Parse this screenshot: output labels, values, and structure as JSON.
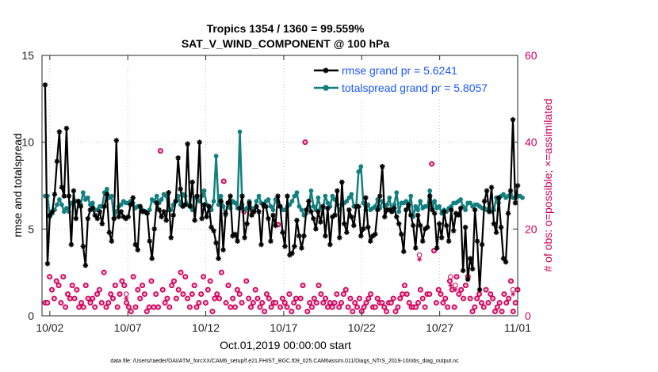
{
  "chart_data": {
    "type": "line",
    "title_line1": "Tropics 1354 / 1360 = 99.559%",
    "title_line2": "SAT_V_WIND_COMPONENT @ 100 hPa",
    "xlabel": "Oct.01,2019 00:00:00 start",
    "ylabel_left": "rmse and totalspread",
    "ylabel_right": "# of obs: o=possible; ×=assimilated",
    "x_range_days": [
      0.5,
      31.0
    ],
    "ylim_left": [
      0,
      15
    ],
    "ylim_right": [
      0,
      60
    ],
    "xticks": [
      {
        "day": 1,
        "label": "10/02"
      },
      {
        "day": 6,
        "label": "10/07"
      },
      {
        "day": 11,
        "label": "10/12"
      },
      {
        "day": 16,
        "label": "10/17"
      },
      {
        "day": 21,
        "label": "10/22"
      },
      {
        "day": 26,
        "label": "10/27"
      },
      {
        "day": 31,
        "label": "11/01"
      }
    ],
    "yticks_left": [
      "0",
      "5",
      "10",
      "15"
    ],
    "yticks_right": [
      "0",
      "20",
      "40",
      "60"
    ],
    "colors": {
      "rmse": "#000000",
      "spread": "#137f7f",
      "obs": "#d1005a",
      "legend_text": "#1a57ff"
    },
    "series": [
      {
        "name": "rmse grand pr = 5.6241",
        "values": [
          13.3,
          3.0,
          5.8,
          6.0,
          7.0,
          8.9,
          10.6,
          7.4,
          6.9,
          10.8,
          6.9,
          4.1,
          7.2,
          5.6,
          6.6,
          6.3,
          4.0,
          2.9,
          5.6,
          6.1,
          6.2,
          5.8,
          5.6,
          6.0,
          5.3,
          6.3,
          7.0,
          4.8,
          4.3,
          5.6,
          10.1,
          5.7,
          6.0,
          5.7,
          5.6,
          5.7,
          6.4,
          6.8,
          4.1,
          3.8,
          6.3,
          6.0,
          6.0,
          5.9,
          4.3,
          3.3,
          5.0,
          6.5,
          6.1,
          5.7,
          6.0,
          5.5,
          7.1,
          4.5,
          5.8,
          6.6,
          9.1,
          7.3,
          6.3,
          6.4,
          9.9,
          6.3,
          7.7,
          5.5,
          6.9,
          10.0,
          5.6,
          6.4,
          5.7,
          6.3,
          5.1,
          4.9,
          4.2,
          3.3,
          6.6,
          3.8,
          5.9,
          6.5,
          6.9,
          4.6,
          4.7,
          4.3,
          6.2,
          6.9,
          4.5,
          5.3,
          6.5,
          5.8,
          6.0,
          6.3,
          6.0,
          4.1,
          6.4,
          6.3,
          5.6,
          4.3,
          5.8,
          5.2,
          6.9,
          6.3,
          4.8,
          4.0,
          6.9,
          3.5,
          3.6,
          4.0,
          5.5,
          4.6,
          3.9,
          4.6,
          6.1,
          6.6,
          6.0,
          5.6,
          5.0,
          6.0,
          5.4,
          6.3,
          4.6,
          6.2,
          4.1,
          5.7,
          5.8,
          7.2,
          4.5,
          7.7,
          5.3,
          4.8,
          6.1,
          5.7,
          5.2,
          6.3,
          6.3,
          4.6,
          5.0,
          6.8,
          5.1,
          4.3,
          4.6,
          4.7,
          6.1,
          6.9,
          8.6,
          5.7,
          6.1,
          6.1,
          6.0,
          6.2,
          5.7,
          5.3,
          4.7,
          3.7,
          6.1,
          6.4,
          5.8,
          5.2,
          3.9,
          5.8,
          5.2,
          4.3,
          5.0,
          5.1,
          6.9,
          6.1,
          5.9,
          3.9,
          5.3,
          4.5,
          6.0,
          5.2,
          4.3,
          6.1,
          4.9,
          5.9,
          5.8,
          6.2,
          2.6,
          5.1,
          2.1,
          3.3,
          2.7,
          6.1,
          4.3,
          1.5,
          4.1,
          6.6,
          7.2,
          6.0,
          7.4,
          5.3,
          4.8,
          6.8,
          5.1,
          3.3,
          3.1,
          5.9,
          7.2,
          11.3,
          6.5,
          7.5
        ]
      },
      {
        "name": "totalspread grand pr = 5.8057",
        "values": [
          6.9,
          6.9,
          5.7,
          5.9,
          6.1,
          6.4,
          6.7,
          6.4,
          6.0,
          6.2,
          6.0,
          6.5,
          6.5,
          6.6,
          6.6,
          6.4,
          7.1,
          6.7,
          6.8,
          6.4,
          6.5,
          6.1,
          6.1,
          6.3,
          6.3,
          7.1,
          7.3,
          6.8,
          6.9,
          5.6,
          6.0,
          6.3,
          6.4,
          6.6,
          6.5,
          6.5,
          6.6,
          6.5,
          6.2,
          6.3,
          6.3,
          6.1,
          6.0,
          5.9,
          6.1,
          6.7,
          6.6,
          6.9,
          6.5,
          6.7,
          7.0,
          6.9,
          6.1,
          6.1,
          6.4,
          6.6,
          6.9,
          6.4,
          7.0,
          6.9,
          6.4,
          6.4,
          6.1,
          6.8,
          6.8,
          6.6,
          6.9,
          7.2,
          6.4,
          6.3,
          6.1,
          6.6,
          6.6,
          6.6,
          6.9,
          6.3,
          5.8,
          6.5,
          6.2,
          6.6,
          6.5,
          6.2,
          6.2,
          6.2,
          6.1,
          6.2,
          6.6,
          6.2,
          6.1,
          6.6,
          6.9,
          6.5,
          6.3,
          6.6,
          6.7,
          6.3,
          6.1,
          6.7,
          6.6,
          6.3,
          6.1,
          6.1,
          6.3,
          6.4,
          6.6,
          6.9,
          7.1,
          6.3,
          6.1,
          5.8,
          5.9,
          6.3,
          7.2,
          6.3,
          6.1,
          6.8,
          6.2,
          6.2,
          6.9,
          6.5,
          6.3,
          6.9,
          6.7,
          6.4,
          6.1,
          6.4,
          6.5,
          6.6,
          6.8,
          6.6,
          6.3,
          6.3,
          6.2,
          6.1,
          6.4,
          6.1,
          6.4,
          6.1,
          6.2,
          6.3,
          6.7,
          6.2,
          6.6,
          6.3,
          6.4,
          6.8,
          6.0,
          6.4,
          6.0,
          6.0,
          6.3,
          6.5,
          6.6,
          6.3,
          6.1,
          5.7,
          6.3,
          6.1,
          6.6,
          6.2,
          6.3,
          6.3,
          6.7,
          6.0,
          6.6,
          6.2,
          6.3,
          5.9,
          6.1,
          6.0,
          6.2,
          6.3,
          6.5,
          6.5,
          6.6,
          6.7,
          6.3,
          6.1,
          6.5,
          6.5,
          6.3,
          6.4,
          6.4,
          6.3,
          6.2,
          6.2,
          6.1,
          6.2,
          6.0,
          6.1,
          6.8,
          6.5,
          6.9,
          7.0,
          6.8,
          6.9,
          7.0,
          6.8,
          6.8,
          6.9,
          6.9,
          6.8
        ]
      }
    ],
    "spread_overrides": [
      {
        "day": 11.7,
        "value": 9.2
      },
      {
        "day": 11.83,
        "value": 6.4
      },
      {
        "day": 13.0,
        "value": 6.2
      },
      {
        "day": 13.17,
        "value": 10.6
      },
      {
        "day": 13.33,
        "value": 6.4
      },
      {
        "day": 20.33,
        "value": 7.0
      },
      {
        "day": 20.83,
        "value": 8.3
      },
      {
        "day": 21.0,
        "value": 8.6
      },
      {
        "day": 21.17,
        "value": 6.5
      },
      {
        "day": 22.83,
        "value": 6.8
      },
      {
        "day": 23.17,
        "value": 7.1
      },
      {
        "day": 23.5,
        "value": 6.5
      },
      {
        "day": 24.17,
        "value": 6.9
      },
      {
        "day": 25.33,
        "value": 7.2
      },
      {
        "day": 25.5,
        "value": 6.3
      }
    ],
    "obs_possible": [
      3,
      3,
      9,
      6,
      4,
      8,
      7,
      3,
      9,
      2,
      5,
      4,
      7,
      4,
      6,
      2,
      3,
      2,
      7,
      4,
      3,
      4,
      2,
      5,
      6,
      3,
      10,
      2,
      3,
      5,
      4,
      7,
      2,
      5,
      8,
      7,
      3,
      2,
      1,
      9,
      2,
      6,
      4,
      7,
      5,
      1,
      2,
      8,
      2,
      5,
      2,
      38,
      6,
      3,
      4,
      2,
      7,
      8,
      4,
      6,
      10,
      5,
      9,
      4,
      2,
      5,
      7,
      2,
      3,
      5,
      9,
      3,
      6,
      8,
      1,
      4,
      5,
      4,
      10,
      31,
      3,
      7,
      2,
      4,
      2,
      6,
      5,
      3,
      24,
      8,
      4,
      2,
      3,
      6,
      4,
      2,
      3,
      1,
      5,
      4,
      2,
      3,
      3,
      21,
      2,
      4,
      3,
      2,
      5,
      1,
      3,
      4,
      2,
      4,
      7,
      40,
      1,
      3,
      2,
      4,
      3,
      7,
      5,
      3,
      4,
      2,
      3,
      2,
      3,
      5,
      2,
      3,
      5,
      6,
      2,
      4,
      1,
      3,
      2,
      4,
      1,
      2,
      3,
      4,
      5,
      2,
      2,
      4,
      3,
      3,
      2,
      1,
      3,
      3,
      4,
      1,
      2,
      4,
      5,
      7,
      5,
      3,
      2,
      2,
      2,
      3,
      6,
      4,
      2,
      5,
      5,
      35,
      15,
      3,
      6,
      5,
      3,
      4,
      2,
      8,
      6,
      2,
      9,
      5,
      6,
      4,
      7,
      9,
      4,
      1,
      2,
      4,
      5,
      3,
      2,
      6,
      3,
      5,
      4,
      1,
      2,
      3,
      1,
      5,
      3,
      4,
      8,
      1,
      3,
      6
    ],
    "obs_empty_circles": [
      {
        "day": 5.9,
        "value": 5
      },
      {
        "day": 24.7,
        "value": 14
      },
      {
        "day": 26.7,
        "value": 9
      },
      {
        "day": 27.0,
        "value": 7
      },
      {
        "day": 30.7,
        "value": 6
      }
    ],
    "obs_assimilated": [
      {
        "day": 5.9,
        "value": 4
      },
      {
        "day": 24.7,
        "value": 13
      },
      {
        "day": 26.7,
        "value": 7
      },
      {
        "day": 27.0,
        "value": 6
      },
      {
        "day": 30.7,
        "value": 5
      }
    ]
  },
  "footnote": "data file: /Users/raeder/DAI/ATM_forcXX/CAM6_setup/f.e21.FHIST_BGC.f09_025.CAM6assim.011/Diags_NTrS_2019-10/obs_diag_output.nc"
}
